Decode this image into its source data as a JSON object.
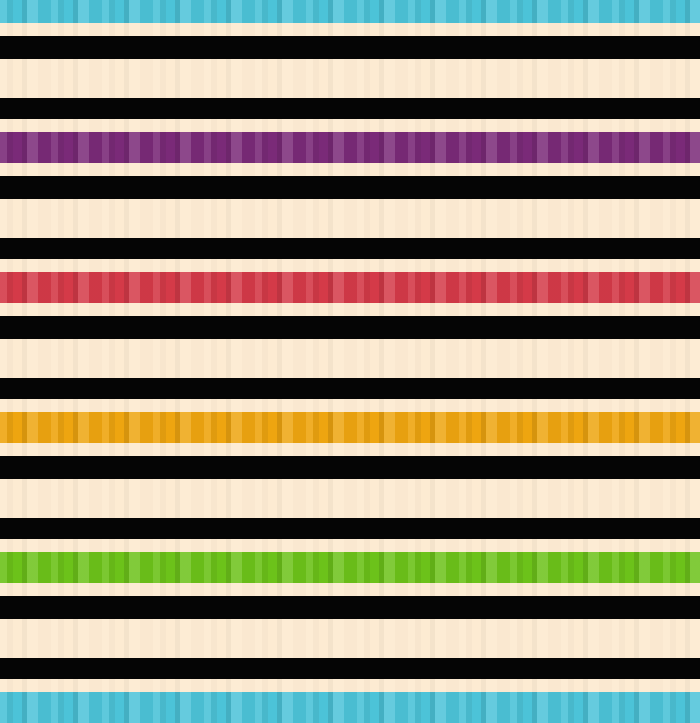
{
  "pattern": {
    "background": "#fdebd2",
    "black": "#050505",
    "accent_bands": [
      {
        "name": "cyan",
        "color": "#4cc3d8"
      },
      {
        "name": "purple",
        "color": "#7a2a78"
      },
      {
        "name": "red",
        "color": "#d43a48"
      },
      {
        "name": "orange",
        "color": "#eea510"
      },
      {
        "name": "green",
        "color": "#6cc21a"
      },
      {
        "name": "cyan",
        "color": "#4cc3d8"
      }
    ]
  }
}
